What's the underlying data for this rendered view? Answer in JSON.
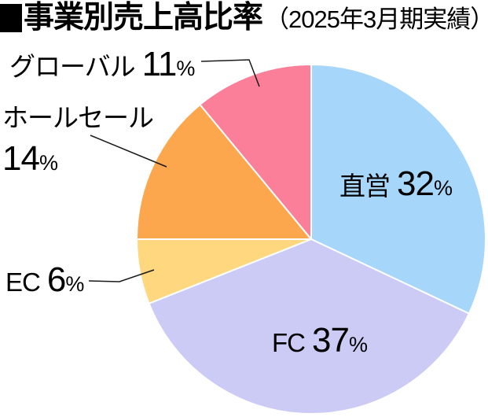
{
  "title": {
    "marker": "■",
    "main": "事業別売上高比率",
    "sub": "（2025年3月期実績）"
  },
  "chart_data": {
    "type": "pie",
    "title": "事業別売上高比率（2025年3月期実績）",
    "unit": "%",
    "total": 100,
    "start_angle": "12 o'clock",
    "direction": "clockwise",
    "slice_border_color": "#ffffff",
    "leader_line_color": "#1a1a1a",
    "segments": [
      {
        "label": "直営",
        "value": 32,
        "unit": "%",
        "color": "#a6d7fb",
        "label_placement": "inside"
      },
      {
        "label": "FC",
        "value": 37,
        "unit": "%",
        "color": "#cccbf5",
        "label_placement": "inside"
      },
      {
        "label": "EC",
        "value": 6,
        "unit": "%",
        "color": "#fed77e",
        "label_placement": "outside-left"
      },
      {
        "label": "ホールセール",
        "value": 14,
        "unit": "%",
        "color": "#fca74d",
        "label_placement": "outside-left"
      },
      {
        "label": "グローバル",
        "value": 11,
        "unit": "%",
        "color": "#fc7f99",
        "label_placement": "outside-top-left"
      }
    ]
  }
}
